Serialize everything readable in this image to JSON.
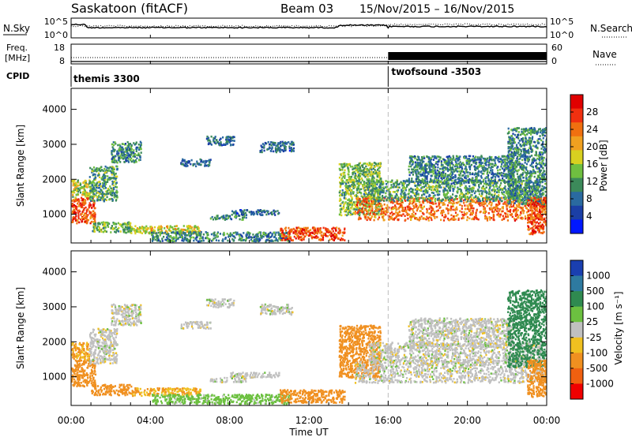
{
  "header": {
    "station": "Saskatoon (fitACF)",
    "beam": "Beam 03",
    "dates": "15/Nov/2015 – 16/Nov/2015"
  },
  "time_axis": {
    "ticks": [
      "00:00",
      "04:00",
      "08:00",
      "12:00",
      "16:00",
      "20:00",
      "00:00"
    ],
    "tick_hours": [
      0,
      4,
      8,
      12,
      16,
      20,
      24
    ],
    "label": "Time UT",
    "range": [
      0,
      24
    ]
  },
  "top_panels": {
    "nsky": {
      "label": "N.Sky",
      "left_ticks": [
        "10^5",
        "10^0"
      ],
      "right_label": "N.Search",
      "right_ticks": [
        "10^5",
        "10^0"
      ]
    },
    "freq": {
      "label_line1": "Freq.",
      "label_line2": "[MHz]",
      "left_ticks": [
        "18",
        "8"
      ],
      "right_label": "Nave",
      "right_ticks": [
        "60",
        "0"
      ],
      "left_range": [
        8,
        18
      ],
      "right_range": [
        0,
        60
      ]
    },
    "cpid": {
      "label": "CPID",
      "modes": [
        {
          "name": "themis 3300",
          "start": 0,
          "end": 16
        },
        {
          "name": "twofsound -3503",
          "start": 16,
          "end": 24
        }
      ]
    }
  },
  "range_axis": {
    "label": "Slant Range [km]",
    "ticks": [
      "1000",
      "2000",
      "3000",
      "4000"
    ],
    "tick_values": [
      1000,
      2000,
      3000,
      4000
    ],
    "range": [
      180,
      4600
    ]
  },
  "power_colorbar": {
    "label": "Power [dB]",
    "ticks": [
      "4",
      "8",
      "12",
      "16",
      "20",
      "24",
      "28"
    ],
    "colors": [
      "#0018ff",
      "#1b3fa6",
      "#2a6aa0",
      "#3c8a5a",
      "#6fbf40",
      "#d8d020",
      "#f0a020",
      "#f07010",
      "#f03010",
      "#e00000"
    ]
  },
  "velocity_colorbar": {
    "label": "Velocity [m s⁻¹]",
    "ticks": [
      "1000",
      "500",
      "100",
      "25",
      "-25",
      "-100",
      "-500",
      "-1000"
    ],
    "colors": [
      "#1a3fb0",
      "#2e7aa0",
      "#2f8a50",
      "#6cc040",
      "#c0c0c0",
      "#f0c020",
      "#f09020",
      "#f06010",
      "#f00000"
    ]
  },
  "chart_data": {
    "type": "heatmap",
    "x_range": [
      0,
      24
    ],
    "y_range": [
      180,
      4600
    ],
    "mode_change_hour": 16,
    "power_regions": [
      {
        "t0": 0.0,
        "t1": 1.2,
        "r0": 750,
        "r1": 1500,
        "level": 26
      },
      {
        "t0": 0.0,
        "t1": 0.9,
        "r0": 1500,
        "r1": 2000,
        "level": 16
      },
      {
        "t0": 0.9,
        "t1": 2.3,
        "r0": 1400,
        "r1": 2400,
        "level": 12
      },
      {
        "t0": 2.0,
        "t1": 3.5,
        "r0": 2500,
        "r1": 3100,
        "level": 10
      },
      {
        "t0": 1.0,
        "t1": 3.0,
        "r0": 500,
        "r1": 800,
        "level": 14
      },
      {
        "t0": 3.0,
        "t1": 6.5,
        "r0": 480,
        "r1": 700,
        "level": 18
      },
      {
        "t0": 5.5,
        "t1": 7.0,
        "r0": 2400,
        "r1": 2600,
        "level": 8
      },
      {
        "t0": 7.0,
        "t1": 8.8,
        "r0": 870,
        "r1": 1000,
        "level": 10
      },
      {
        "t0": 8.0,
        "t1": 10.5,
        "r0": 1000,
        "r1": 1150,
        "level": 8
      },
      {
        "t0": 6.8,
        "t1": 8.2,
        "r0": 3000,
        "r1": 3250,
        "level": 8
      },
      {
        "t0": 9.5,
        "t1": 11.2,
        "r0": 2800,
        "r1": 3100,
        "level": 8
      },
      {
        "t0": 4.0,
        "t1": 11.0,
        "r0": 250,
        "r1": 520,
        "level": 10
      },
      {
        "t0": 10.5,
        "t1": 13.8,
        "r0": 280,
        "r1": 650,
        "level": 26
      },
      {
        "t0": 13.5,
        "t1": 15.6,
        "r0": 1000,
        "r1": 2500,
        "level": 14
      },
      {
        "t0": 14.3,
        "t1": 24.0,
        "r0": 850,
        "r1": 1500,
        "level": 24
      },
      {
        "t0": 15.0,
        "t1": 23.7,
        "r0": 1400,
        "r1": 2000,
        "level": 12
      },
      {
        "t0": 17.0,
        "t1": 22.3,
        "r0": 1900,
        "r1": 2700,
        "level": 10
      },
      {
        "t0": 22.0,
        "t1": 24.0,
        "r0": 1300,
        "r1": 3500,
        "level": 10
      },
      {
        "t0": 23.0,
        "t1": 24.0,
        "r0": 450,
        "r1": 1500,
        "level": 26
      }
    ],
    "velocity_regions": [
      {
        "t0": 0.0,
        "t1": 1.2,
        "r0": 750,
        "r1": 1500,
        "level": -300
      },
      {
        "t0": 0.0,
        "t1": 0.9,
        "r0": 1500,
        "r1": 2000,
        "level": -100
      },
      {
        "t0": 0.9,
        "t1": 2.3,
        "r0": 1400,
        "r1": 2400,
        "level": 0
      },
      {
        "t0": 2.0,
        "t1": 3.5,
        "r0": 2500,
        "r1": 3100,
        "level": 0
      },
      {
        "t0": 1.0,
        "t1": 3.0,
        "r0": 500,
        "r1": 800,
        "level": -200
      },
      {
        "t0": 3.0,
        "t1": 6.5,
        "r0": 480,
        "r1": 700,
        "level": -100
      },
      {
        "t0": 5.5,
        "t1": 7.0,
        "r0": 2400,
        "r1": 2600,
        "level": 0
      },
      {
        "t0": 7.0,
        "t1": 8.8,
        "r0": 870,
        "r1": 1000,
        "level": 0
      },
      {
        "t0": 8.0,
        "t1": 10.5,
        "r0": 1000,
        "r1": 1150,
        "level": 0
      },
      {
        "t0": 6.8,
        "t1": 8.2,
        "r0": 3000,
        "r1": 3250,
        "level": 0
      },
      {
        "t0": 9.5,
        "t1": 11.2,
        "r0": 2800,
        "r1": 3100,
        "level": 0
      },
      {
        "t0": 4.0,
        "t1": 11.0,
        "r0": 250,
        "r1": 520,
        "level": 50
      },
      {
        "t0": 10.5,
        "t1": 13.8,
        "r0": 280,
        "r1": 650,
        "level": -150
      },
      {
        "t0": 13.5,
        "t1": 15.6,
        "r0": 1000,
        "r1": 2500,
        "level": -200
      },
      {
        "t0": 14.3,
        "t1": 24.0,
        "r0": 850,
        "r1": 1500,
        "level": 0
      },
      {
        "t0": 15.0,
        "t1": 23.7,
        "r0": 1400,
        "r1": 2000,
        "level": 0
      },
      {
        "t0": 17.0,
        "t1": 22.3,
        "r0": 1900,
        "r1": 2700,
        "level": 0
      },
      {
        "t0": 22.0,
        "t1": 24.0,
        "r0": 1300,
        "r1": 3500,
        "level": 200
      },
      {
        "t0": 23.0,
        "t1": 24.0,
        "r0": 450,
        "r1": 1500,
        "level": -400
      }
    ]
  }
}
